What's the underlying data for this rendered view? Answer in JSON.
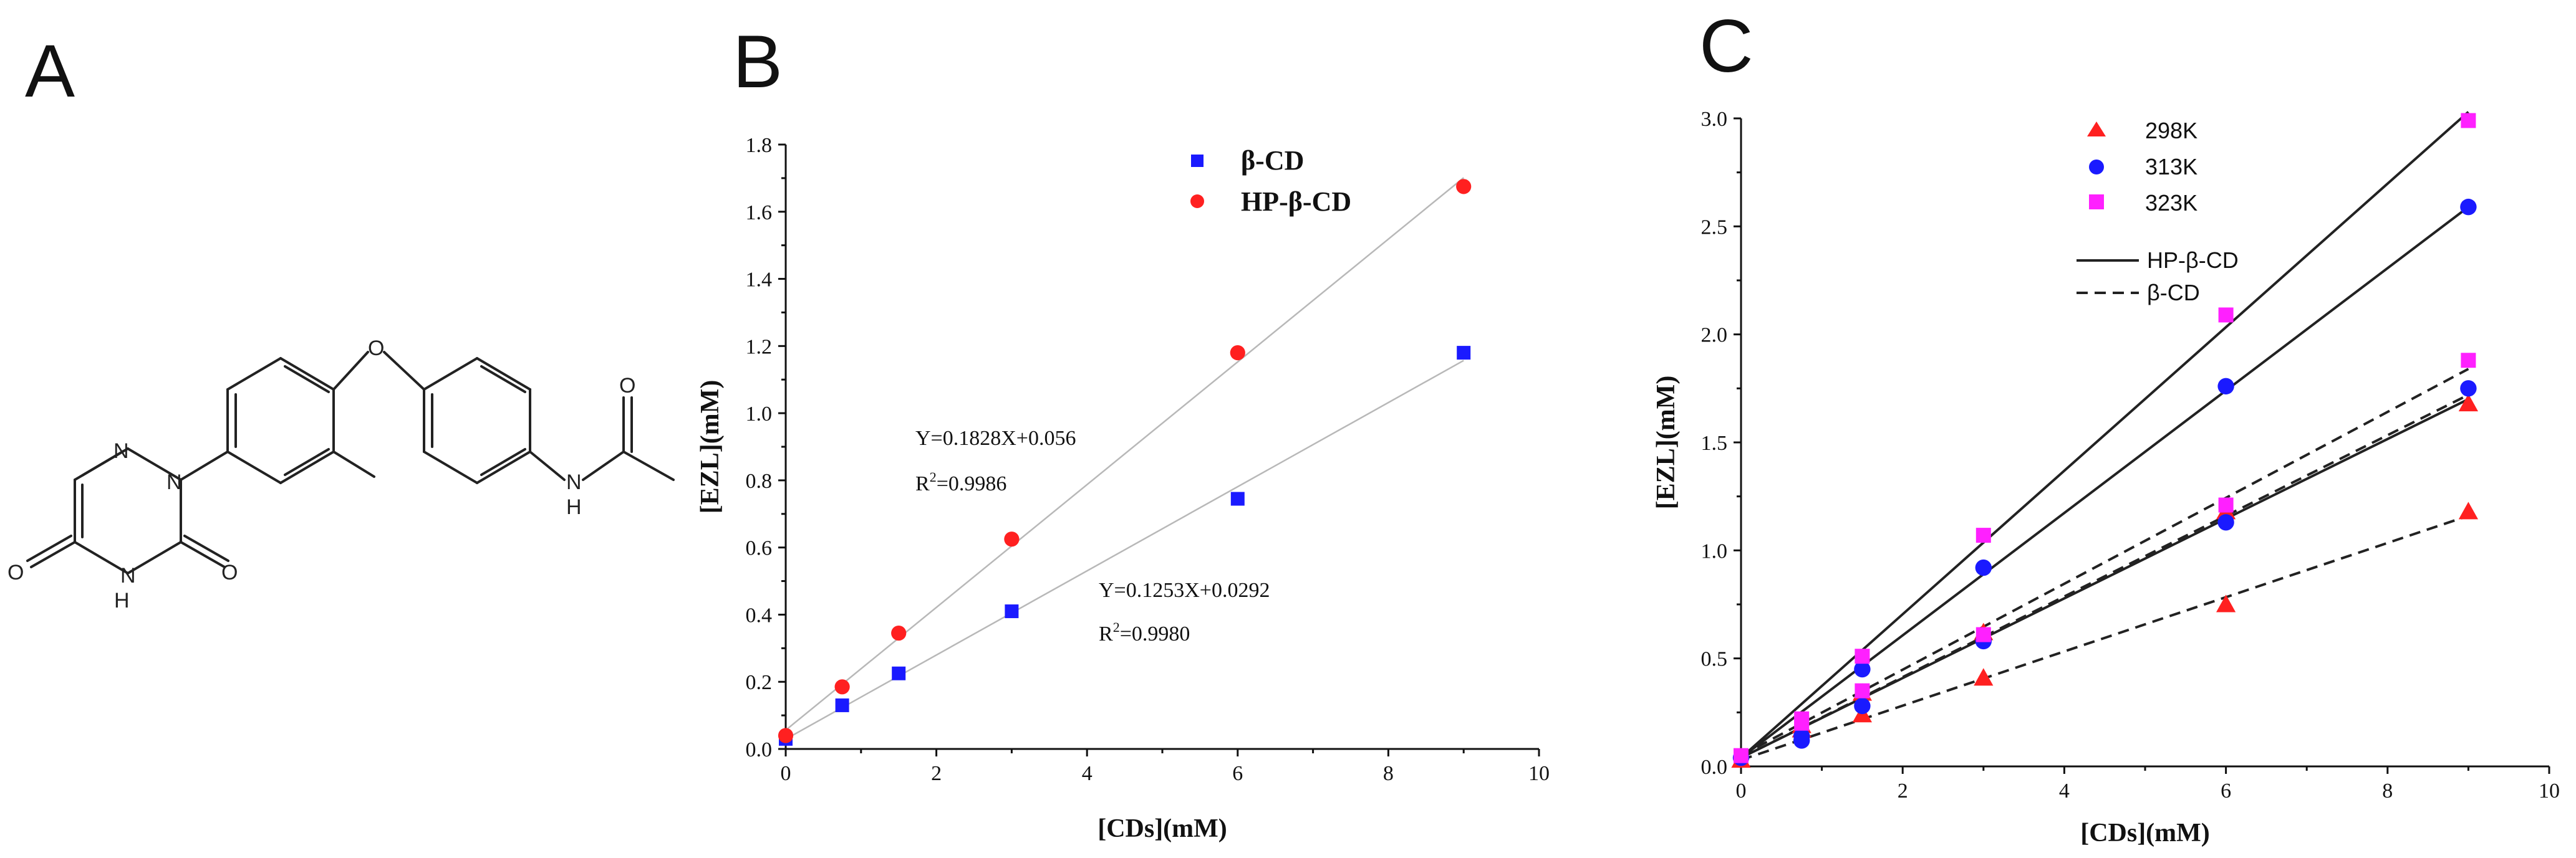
{
  "panels": {
    "a": "A",
    "b": "B",
    "c": "C"
  },
  "molecule": {
    "atoms": {
      "o_ether": "O",
      "n1": "N",
      "n2": "N",
      "o_keto1": "O",
      "nh": "H",
      "n_ring": "N",
      "o_keto2": "O",
      "nh_amide": "N",
      "h_amide": "H",
      "o_amide": "O"
    }
  },
  "colors": {
    "blue": "#1a1aff",
    "red": "#ff2020",
    "magenta": "#ff20ff",
    "fit": "#b8b8b8",
    "ink": "#222222"
  },
  "chart_data": [
    {
      "panel": "B",
      "type": "scatter",
      "xlabel": "[CDs](mM)",
      "ylabel": "[EZL](mM)",
      "xlim": [
        0,
        10
      ],
      "ylim": [
        0,
        1.8
      ],
      "xticks": [
        0,
        2,
        4,
        6,
        8,
        10
      ],
      "yticks": [
        0.0,
        0.2,
        0.4,
        0.6,
        0.8,
        1.0,
        1.2,
        1.4,
        1.6,
        1.8
      ],
      "legend_position": "top-right",
      "series": [
        {
          "name": "β-CD",
          "marker": "square",
          "color": "#1a1aff",
          "x": [
            0,
            0.75,
            1.5,
            3,
            6,
            9
          ],
          "y": [
            0.03,
            0.13,
            0.225,
            0.41,
            0.745,
            1.18
          ],
          "fit": {
            "slope": 0.1253,
            "intercept": 0.0292
          }
        },
        {
          "name": "HP-β-CD",
          "marker": "circle",
          "color": "#ff2020",
          "x": [
            0,
            0.75,
            1.5,
            3,
            6,
            9
          ],
          "y": [
            0.04,
            0.185,
            0.345,
            0.625,
            1.18,
            1.675
          ],
          "fit": {
            "slope": 0.1828,
            "intercept": 0.056
          }
        }
      ],
      "annotations": {
        "hp_eq": "Y=0.1828X+0.056",
        "hp_r2_prefix": "R",
        "hp_r2_sup": "2",
        "hp_r2_val": "=0.9986",
        "b_eq": "Y=0.1253X+0.0292",
        "b_r2_prefix": "R",
        "b_r2_sup": "2",
        "b_r2_val": "=0.9980"
      }
    },
    {
      "panel": "C",
      "type": "scatter",
      "xlabel": "[CDs](mM)",
      "ylabel": "[EZL](mM)",
      "xlim": [
        0,
        10
      ],
      "ylim": [
        0,
        3.0
      ],
      "xticks": [
        0,
        2,
        4,
        6,
        8,
        10
      ],
      "yticks": [
        0.0,
        0.5,
        1.0,
        1.5,
        2.0,
        2.5,
        3.0
      ],
      "legend_position": "top-left",
      "legend_lines": {
        "solid": "HP-β-CD",
        "dashed": "β-CD"
      },
      "series": [
        {
          "name": "298K",
          "marker": "triangle",
          "color": "#ff2020",
          "x": [
            0,
            0.75,
            1.5,
            3,
            6,
            9,
            0.75,
            1.5,
            3,
            6,
            9
          ],
          "y": [
            0.03,
            0.17,
            0.24,
            0.41,
            0.75,
            1.18,
            0.19,
            0.34,
            0.62,
            1.18,
            1.68
          ]
        },
        {
          "name": "313K",
          "marker": "circle",
          "color": "#1a1aff",
          "x": [
            0,
            0.75,
            1.5,
            3,
            6,
            9,
            0.75,
            1.5,
            3,
            6,
            9
          ],
          "y": [
            0.04,
            0.12,
            0.28,
            0.58,
            1.13,
            1.75,
            0.14,
            0.45,
            0.92,
            1.76,
            2.59
          ]
        },
        {
          "name": "323K",
          "marker": "square",
          "color": "#ff20ff",
          "x": [
            0,
            0.75,
            1.5,
            3,
            6,
            9,
            0.75,
            1.5,
            3,
            6,
            9
          ],
          "y": [
            0.05,
            0.2,
            0.35,
            0.61,
            1.21,
            1.88,
            0.22,
            0.51,
            1.07,
            2.09,
            2.99
          ]
        }
      ],
      "lines": [
        {
          "style": "solid",
          "temp": "298K",
          "x": [
            0,
            9
          ],
          "y": [
            0.04,
            1.7
          ]
        },
        {
          "style": "solid",
          "temp": "313K",
          "x": [
            0,
            9
          ],
          "y": [
            0.04,
            2.59
          ]
        },
        {
          "style": "solid",
          "temp": "323K",
          "x": [
            0,
            9
          ],
          "y": [
            0.04,
            3.03
          ]
        },
        {
          "style": "dashed",
          "temp": "298K",
          "x": [
            0,
            9
          ],
          "y": [
            0.03,
            1.16
          ]
        },
        {
          "style": "dashed",
          "temp": "313K",
          "x": [
            0,
            9
          ],
          "y": [
            0.04,
            1.72
          ]
        },
        {
          "style": "dashed",
          "temp": "323K",
          "x": [
            0,
            9
          ],
          "y": [
            0.05,
            1.84
          ]
        }
      ]
    }
  ]
}
